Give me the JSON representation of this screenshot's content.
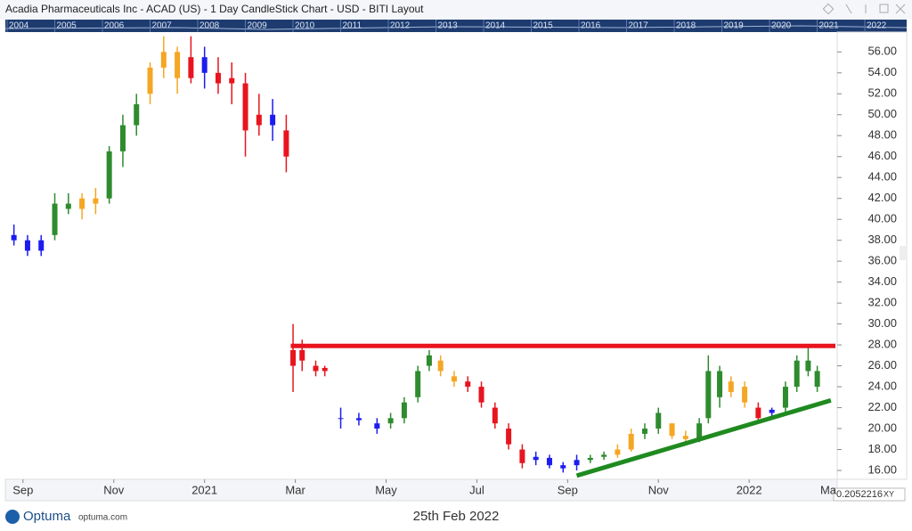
{
  "chart_data": {
    "type": "candlestick",
    "title": "Acadia Pharmaceuticals Inc - ACAD (US) - 1 Day CandleStick Chart - USD - BITI Layout",
    "navigator_years": [
      "2004",
      "2005",
      "2006",
      "2007",
      "2008",
      "2009",
      "2010",
      "2011",
      "2012",
      "2013",
      "2014",
      "2015",
      "2016",
      "2017",
      "2018",
      "2019",
      "2020",
      "2021",
      "2022"
    ],
    "xlim": [
      -0.35,
      17.9
    ],
    "xticks": [
      {
        "value": 0,
        "label": "Sep"
      },
      {
        "value": 2,
        "label": "Nov"
      },
      {
        "value": 4,
        "label": "2021"
      },
      {
        "value": 6,
        "label": "Mar"
      },
      {
        "value": 8,
        "label": "May"
      },
      {
        "value": 10,
        "label": "Jul"
      },
      {
        "value": 12,
        "label": "Sep"
      },
      {
        "value": 14,
        "label": "Nov"
      },
      {
        "value": 16,
        "label": "2022"
      },
      {
        "value": 18,
        "label": "Ma"
      }
    ],
    "ylim": [
      15.15,
      57.9
    ],
    "yticks": [
      {
        "value": 16,
        "label": "16.00"
      },
      {
        "value": 18,
        "label": "18.00"
      },
      {
        "value": 20,
        "label": "20.00"
      },
      {
        "value": 22,
        "label": "22.00"
      },
      {
        "value": 24,
        "label": "24.00"
      },
      {
        "value": 26,
        "label": "26.00"
      },
      {
        "value": 28,
        "label": "28.00"
      },
      {
        "value": 30,
        "label": "30.00"
      },
      {
        "value": 32,
        "label": "32.00"
      },
      {
        "value": 34,
        "label": "34.00"
      },
      {
        "value": 36,
        "label": "36.00"
      },
      {
        "value": 38,
        "label": "38.00"
      },
      {
        "value": 40,
        "label": "40.00"
      },
      {
        "value": 42,
        "label": "42.00"
      },
      {
        "value": 44,
        "label": "44.00"
      },
      {
        "value": 46,
        "label": "46.00"
      },
      {
        "value": 48,
        "label": "48.00"
      },
      {
        "value": 50,
        "label": "50.00"
      },
      {
        "value": 52,
        "label": "52.00"
      },
      {
        "value": 54,
        "label": "54.00"
      },
      {
        "value": 56,
        "label": "56.00"
      }
    ],
    "x": [
      -0.2,
      0.1,
      0.4,
      0.7,
      1.0,
      1.3,
      1.6,
      1.9,
      2.2,
      2.5,
      2.8,
      3.1,
      3.4,
      3.7,
      4.0,
      4.3,
      4.6,
      4.9,
      5.2,
      5.5,
      5.8,
      5.95,
      6.15,
      6.45,
      6.65,
      7.0,
      7.4,
      7.8,
      8.1,
      8.4,
      8.7,
      8.95,
      9.2,
      9.5,
      9.8,
      10.1,
      10.4,
      10.7,
      11.0,
      11.3,
      11.6,
      11.9,
      12.2,
      12.5,
      12.8,
      13.1,
      13.4,
      13.7,
      14.0,
      14.3,
      14.6,
      14.9,
      15.1,
      15.35,
      15.6,
      15.9,
      16.2,
      16.5,
      16.8,
      17.05,
      17.3,
      17.5
    ],
    "open": [
      38.5,
      38,
      37,
      38.5,
      41.5,
      41,
      42,
      42,
      46.5,
      49,
      52,
      54.5,
      56,
      53.5,
      55.5,
      54,
      53,
      53,
      49,
      50,
      48.5,
      26,
      27.5,
      26,
      25.5,
      21,
      21,
      20.5,
      20.5,
      21,
      23,
      26,
      26.5,
      25,
      24.5,
      24,
      22,
      20,
      18,
      17,
      17.2,
      16.5,
      16.5,
      17,
      17.3,
      17.5,
      18,
      19.5,
      20,
      20.5,
      19.3,
      19,
      21,
      25.5,
      23.5,
      24,
      22,
      21.5,
      22,
      24,
      26.5,
      25.5
    ],
    "high": [
      39.5,
      38.5,
      38.5,
      42.5,
      42.5,
      42.5,
      43,
      47,
      50,
      52,
      55,
      57.5,
      56.5,
      57.5,
      56.5,
      55.5,
      55,
      54,
      52,
      51.5,
      50,
      30,
      28.5,
      26.5,
      26,
      22,
      21.5,
      21,
      21.5,
      23,
      26,
      27.5,
      27,
      25.5,
      25,
      24.5,
      22.5,
      20.5,
      18.5,
      17.8,
      17.5,
      16.8,
      17.5,
      17.5,
      17.8,
      18.5,
      20,
      20.5,
      22,
      20.5,
      19.8,
      21,
      27,
      26,
      25,
      24.5,
      22.5,
      22,
      24.5,
      27,
      27.7,
      26
    ],
    "low": [
      37.5,
      36.5,
      36.5,
      38,
      40.5,
      40,
      40.5,
      41.5,
      45,
      48,
      51,
      53.5,
      52,
      53,
      52.5,
      52,
      51,
      46,
      48,
      47.5,
      44.5,
      23.5,
      25.5,
      25,
      25,
      20,
      20.3,
      19.5,
      20,
      20.5,
      22.5,
      25.5,
      25,
      24,
      23.5,
      22,
      20,
      18,
      16.2,
      16.5,
      16.2,
      15.8,
      16,
      16.7,
      17,
      17.2,
      17.8,
      19,
      19.5,
      19,
      18.5,
      18.7,
      20.5,
      22,
      23,
      22,
      20.5,
      21,
      21.5,
      23.5,
      25,
      23.5
    ],
    "close": [
      38,
      37,
      38,
      41.5,
      41,
      42,
      41.5,
      46.5,
      49,
      51,
      54.5,
      56,
      53.5,
      55.5,
      54,
      53,
      53.5,
      48.5,
      50,
      49,
      46,
      27.5,
      26.5,
      25.5,
      25.8,
      21,
      20.8,
      20,
      21,
      22.5,
      25.5,
      27,
      25.5,
      24.5,
      24,
      22.5,
      20.5,
      18.5,
      16.7,
      17.3,
      16.5,
      16.2,
      17,
      17.2,
      17.5,
      18,
      19.5,
      20,
      21.5,
      19.3,
      19,
      20.5,
      25.5,
      23,
      24.5,
      22.5,
      21,
      21.8,
      24,
      26.5,
      25.5,
      24
    ],
    "colors": [
      "#1c1cf0",
      "#1c1cf0",
      "#1c1cf0",
      "#2e8b2e",
      "#2e8b2e",
      "#f5a623",
      "#f5a623",
      "#2e8b2e",
      "#2e8b2e",
      "#2e8b2e",
      "#f5a623",
      "#f5a623",
      "#f5a623",
      "#e8141e",
      "#1c1cf0",
      "#e8141e",
      "#e8141e",
      "#e8141e",
      "#e8141e",
      "#1c1cf0",
      "#e8141e",
      "#e8141e",
      "#e8141e",
      "#e8141e",
      "#e8141e",
      "#1c1cf0",
      "#1c1cf0",
      "#1c1cf0",
      "#2e8b2e",
      "#2e8b2e",
      "#2e8b2e",
      "#2e8b2e",
      "#f5a623",
      "#f5a623",
      "#e8141e",
      "#e8141e",
      "#e8141e",
      "#e8141e",
      "#e8141e",
      "#1c1cf0",
      "#1c1cf0",
      "#1c1cf0",
      "#1c1cf0",
      "#2e8b2e",
      "#2e8b2e",
      "#f5a623",
      "#f5a623",
      "#2e8b2e",
      "#2e8b2e",
      "#f5a623",
      "#f5a623",
      "#2e8b2e",
      "#2e8b2e",
      "#2e8b2e",
      "#f5a623",
      "#f5a623",
      "#e8141e",
      "#1c1cf0",
      "#2e8b2e",
      "#2e8b2e",
      "#2e8b2e",
      "#2e8b2e"
    ],
    "trendlines": [
      {
        "x": [
          5.9,
          17.9
        ],
        "y": [
          27.9,
          27.9
        ],
        "color": "#e8141e"
      },
      {
        "x": [
          12.2,
          17.8
        ],
        "y": [
          15.5,
          22.7
        ],
        "color": "#1f8a1f"
      }
    ],
    "footer": {
      "brand": "Optuma",
      "site": "optuma.com",
      "date": "25th Feb 2022",
      "readout": "0.2052216",
      "mode": "XY"
    }
  }
}
